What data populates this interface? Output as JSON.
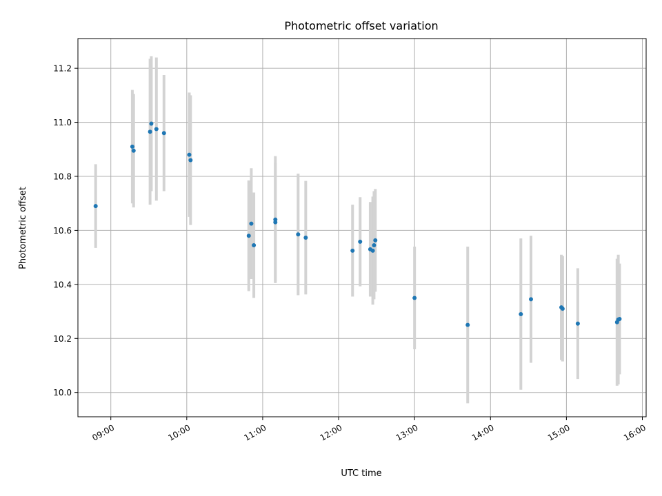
{
  "chart_data": {
    "type": "scatter",
    "title": "Photometric offset variation",
    "xlabel": "UTC time",
    "ylabel": "Photometric offset",
    "x_unit": "time of day (HH:MM, UTC)",
    "xlim": [
      "08:34",
      "16:03"
    ],
    "ylim": [
      9.91,
      11.31
    ],
    "x_ticks": [
      "09:00",
      "10:00",
      "11:00",
      "12:00",
      "13:00",
      "14:00",
      "15:00",
      "16:00"
    ],
    "y_ticks": [
      "10.0",
      "10.2",
      "10.4",
      "10.6",
      "10.8",
      "11.0",
      "11.2"
    ],
    "y_tick_values": [
      10.0,
      10.2,
      10.4,
      10.6,
      10.8,
      11.0,
      11.2
    ],
    "grid": true,
    "marker_color": "#1f77b4",
    "errorbar_color": "#d3d3d3",
    "points": [
      {
        "x": "08:48",
        "y": 10.69,
        "err": 0.155
      },
      {
        "x": "09:17",
        "y": 10.91,
        "err": 0.21
      },
      {
        "x": "09:18",
        "y": 10.895,
        "err": 0.21
      },
      {
        "x": "09:31",
        "y": 10.965,
        "err": 0.27
      },
      {
        "x": "09:32",
        "y": 10.995,
        "err": 0.25
      },
      {
        "x": "09:36",
        "y": 10.975,
        "err": 0.265
      },
      {
        "x": "09:42",
        "y": 10.96,
        "err": 0.215
      },
      {
        "x": "10:02",
        "y": 10.88,
        "err": 0.23
      },
      {
        "x": "10:03",
        "y": 10.86,
        "err": 0.24
      },
      {
        "x": "10:49",
        "y": 10.58,
        "err": 0.205
      },
      {
        "x": "10:51",
        "y": 10.625,
        "err": 0.205
      },
      {
        "x": "10:53",
        "y": 10.545,
        "err": 0.195
      },
      {
        "x": "11:10",
        "y": 10.64,
        "err": 0.235
      },
      {
        "x": "11:10",
        "y": 10.63,
        "err": 0.22
      },
      {
        "x": "11:28",
        "y": 10.585,
        "err": 0.225
      },
      {
        "x": "11:34",
        "y": 10.573,
        "err": 0.21
      },
      {
        "x": "12:11",
        "y": 10.525,
        "err": 0.17
      },
      {
        "x": "12:17",
        "y": 10.558,
        "err": 0.165
      },
      {
        "x": "12:25",
        "y": 10.53,
        "err": 0.175
      },
      {
        "x": "12:27",
        "y": 10.525,
        "err": 0.2
      },
      {
        "x": "12:28",
        "y": 10.545,
        "err": 0.2
      },
      {
        "x": "12:29",
        "y": 10.563,
        "err": 0.19
      },
      {
        "x": "13:00",
        "y": 10.35,
        "err": 0.19
      },
      {
        "x": "13:42",
        "y": 10.25,
        "err": 0.29
      },
      {
        "x": "14:24",
        "y": 10.29,
        "err": 0.28
      },
      {
        "x": "14:32",
        "y": 10.345,
        "err": 0.235
      },
      {
        "x": "14:56",
        "y": 10.315,
        "err": 0.195
      },
      {
        "x": "14:57",
        "y": 10.31,
        "err": 0.195
      },
      {
        "x": "15:09",
        "y": 10.255,
        "err": 0.205
      },
      {
        "x": "15:40",
        "y": 10.26,
        "err": 0.235
      },
      {
        "x": "15:41",
        "y": 10.27,
        "err": 0.24
      },
      {
        "x": "15:42",
        "y": 10.272,
        "err": 0.205
      }
    ]
  }
}
